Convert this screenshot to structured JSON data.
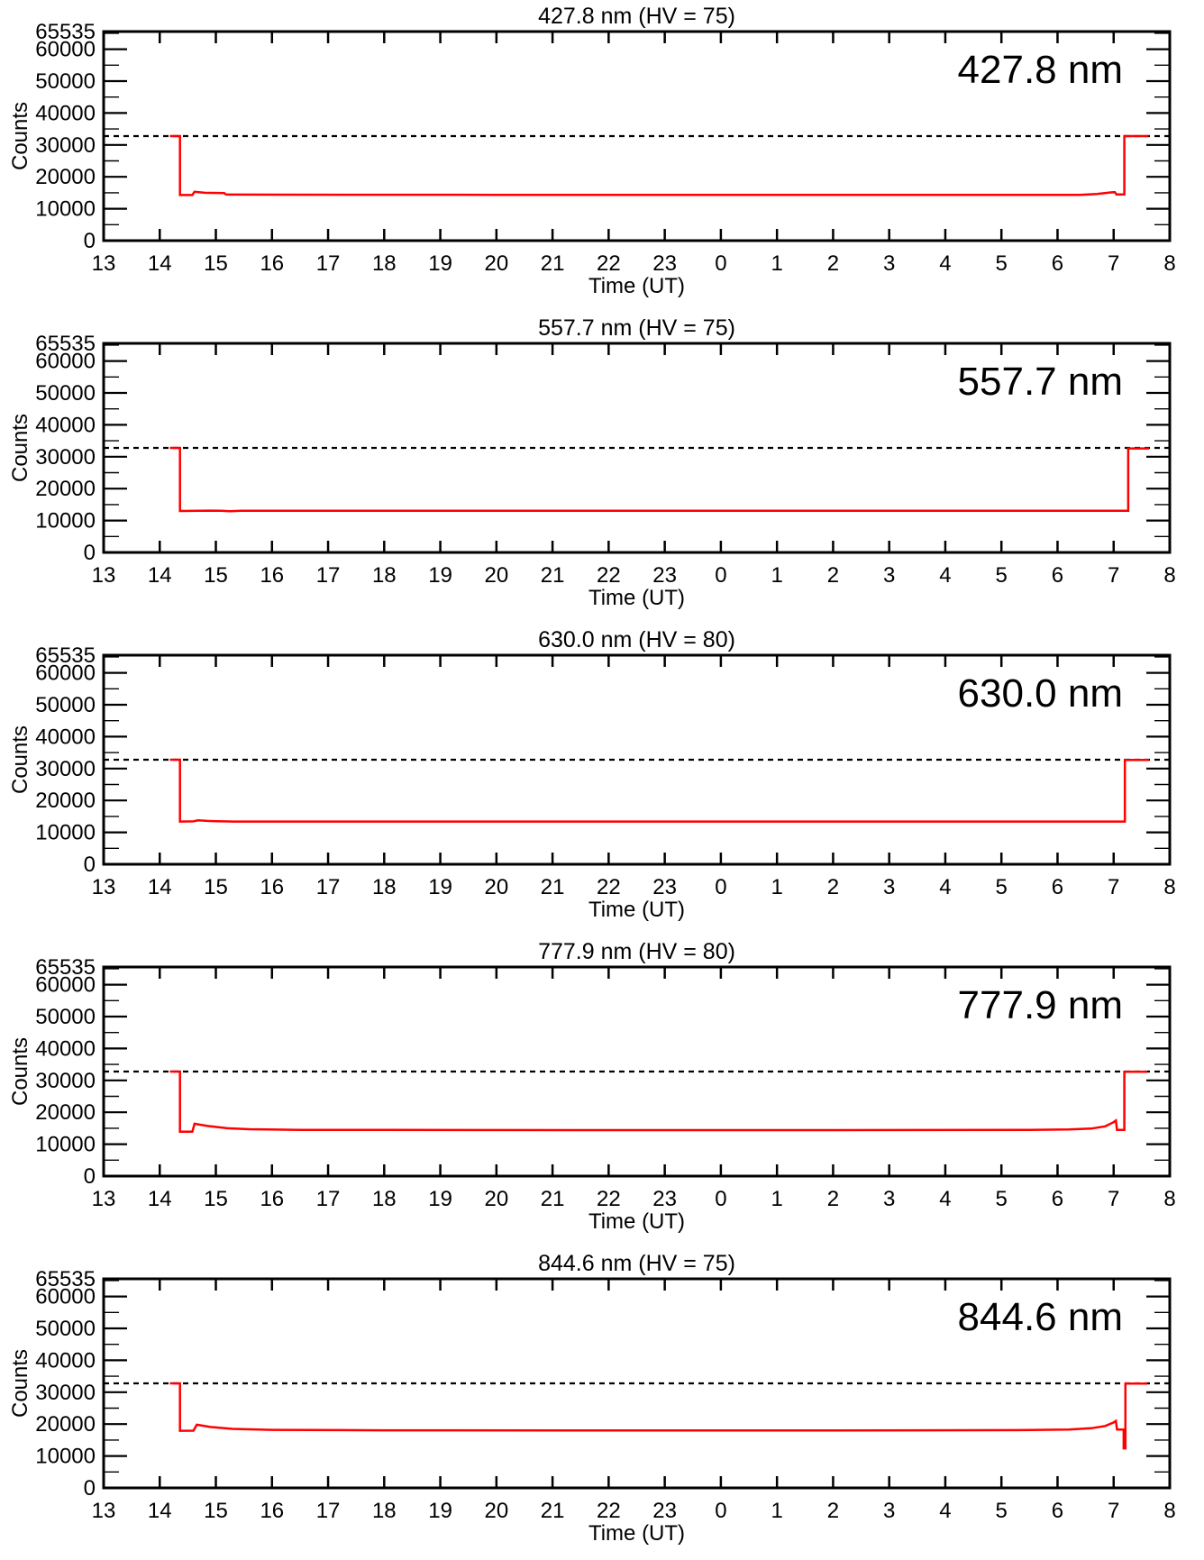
{
  "page": {
    "background": "#ffffff"
  },
  "colors": {
    "axis": "#000000",
    "text": "#000000",
    "series": "#ff0000",
    "threshold": "#000000"
  },
  "axes_common": {
    "ylabel": "Counts",
    "xlabel": "Time (UT)",
    "ylim": [
      0,
      65535
    ],
    "x_range": [
      13,
      32
    ],
    "x_tick_labels": [
      "13",
      "14",
      "15",
      "16",
      "17",
      "18",
      "19",
      "20",
      "21",
      "22",
      "23",
      "0",
      "1",
      "2",
      "3",
      "4",
      "5",
      "6",
      "7",
      "8"
    ],
    "y_tick_values": [
      0,
      10000,
      20000,
      30000,
      40000,
      50000,
      60000,
      65535
    ],
    "y_tick_labels": [
      "0",
      "10000",
      "20000",
      "30000",
      "40000",
      "50000",
      "60000",
      "65535"
    ],
    "y_minor_step": 5000,
    "grid": "off",
    "threshold_level": 32767,
    "threshold_style": "dashed"
  },
  "chart_data": [
    {
      "type": "line",
      "title": "427.8 nm (HV = 75)",
      "annotation": "427.8 nm",
      "xlabel": "Time (UT)",
      "ylabel": "Counts",
      "x_range": [
        13,
        32
      ],
      "ylim": [
        0,
        65535
      ],
      "dashed_level": 32767,
      "series": [
        {
          "name": "counts",
          "color": "#ff0000",
          "points": [
            [
              14.18,
              32767
            ],
            [
              14.36,
              32767
            ],
            [
              14.36,
              14300
            ],
            [
              14.58,
              14300
            ],
            [
              14.62,
              15300
            ],
            [
              14.8,
              15000
            ],
            [
              15.15,
              14900
            ],
            [
              15.18,
              14450
            ],
            [
              16,
              14400
            ],
            [
              20,
              14350
            ],
            [
              24,
              14350
            ],
            [
              28,
              14350
            ],
            [
              30.4,
              14350
            ],
            [
              30.7,
              14600
            ],
            [
              30.95,
              15100
            ],
            [
              31.02,
              15200
            ],
            [
              31.05,
              14500
            ],
            [
              31.19,
              14500
            ],
            [
              31.19,
              32767
            ],
            [
              31.62,
              32767
            ]
          ]
        }
      ]
    },
    {
      "type": "line",
      "title": "557.7 nm (HV = 75)",
      "annotation": "557.7 nm",
      "xlabel": "Time (UT)",
      "ylabel": "Counts",
      "x_range": [
        13,
        32
      ],
      "ylim": [
        0,
        65535
      ],
      "dashed_level": 32767,
      "series": [
        {
          "name": "counts",
          "color": "#ff0000",
          "points": [
            [
              14.18,
              32767
            ],
            [
              14.36,
              32767
            ],
            [
              14.36,
              13000
            ],
            [
              14.9,
              13100
            ],
            [
              15.1,
              13050
            ],
            [
              15.25,
              12900
            ],
            [
              15.45,
              13050
            ],
            [
              20,
              13050
            ],
            [
              25,
              13050
            ],
            [
              31.26,
              13050
            ],
            [
              31.26,
              32600
            ],
            [
              31.63,
              32600
            ]
          ]
        }
      ]
    },
    {
      "type": "line",
      "title": "630.0 nm (HV = 80)",
      "annotation": "630.0 nm",
      "xlabel": "Time (UT)",
      "ylabel": "Counts",
      "x_range": [
        13,
        32
      ],
      "ylim": [
        0,
        65535
      ],
      "dashed_level": 32767,
      "series": [
        {
          "name": "counts",
          "color": "#ff0000",
          "points": [
            [
              14.18,
              32767
            ],
            [
              14.36,
              32767
            ],
            [
              14.36,
              13400
            ],
            [
              14.6,
              13450
            ],
            [
              14.68,
              13750
            ],
            [
              14.85,
              13600
            ],
            [
              15.0,
              13500
            ],
            [
              15.3,
              13400
            ],
            [
              20,
              13400
            ],
            [
              25,
              13400
            ],
            [
              31.2,
              13400
            ],
            [
              31.2,
              32700
            ],
            [
              31.63,
              32700
            ]
          ]
        }
      ]
    },
    {
      "type": "line",
      "title": "777.9 nm (HV = 80)",
      "annotation": "777.9 nm",
      "xlabel": "Time (UT)",
      "ylabel": "Counts",
      "x_range": [
        13,
        32
      ],
      "ylim": [
        0,
        65535
      ],
      "dashed_level": 32767,
      "series": [
        {
          "name": "counts",
          "color": "#ff0000",
          "points": [
            [
              14.18,
              32767
            ],
            [
              14.36,
              32767
            ],
            [
              14.36,
              13900
            ],
            [
              14.58,
              13900
            ],
            [
              14.62,
              16400
            ],
            [
              14.85,
              15700
            ],
            [
              15.2,
              15000
            ],
            [
              15.6,
              14700
            ],
            [
              16.5,
              14500
            ],
            [
              18,
              14450
            ],
            [
              22,
              14400
            ],
            [
              26,
              14400
            ],
            [
              29.5,
              14450
            ],
            [
              30.2,
              14600
            ],
            [
              30.6,
              14900
            ],
            [
              30.85,
              15600
            ],
            [
              31.0,
              16900
            ],
            [
              31.04,
              17400
            ],
            [
              31.06,
              14500
            ],
            [
              31.19,
              14500
            ],
            [
              31.19,
              32700
            ],
            [
              31.6,
              32700
            ]
          ]
        }
      ]
    },
    {
      "type": "line",
      "title": "844.6 nm (HV = 75)",
      "annotation": "844.6 nm",
      "xlabel": "Time (UT)",
      "ylabel": "Counts",
      "x_range": [
        13,
        32
      ],
      "ylim": [
        0,
        65535
      ],
      "dashed_level": 32767,
      "series": [
        {
          "name": "counts",
          "color": "#ff0000",
          "points": [
            [
              14.18,
              32767
            ],
            [
              14.36,
              32767
            ],
            [
              14.36,
              17900
            ],
            [
              14.6,
              17950
            ],
            [
              14.66,
              19800
            ],
            [
              14.9,
              19100
            ],
            [
              15.3,
              18500
            ],
            [
              16,
              18200
            ],
            [
              18,
              18050
            ],
            [
              22,
              18000
            ],
            [
              26,
              18000
            ],
            [
              29.3,
              18100
            ],
            [
              30.2,
              18300
            ],
            [
              30.6,
              18700
            ],
            [
              30.85,
              19400
            ],
            [
              31.0,
              20500
            ],
            [
              31.04,
              21000
            ],
            [
              31.06,
              18300
            ],
            [
              31.18,
              18300
            ],
            [
              31.18,
              12400
            ],
            [
              31.21,
              12400
            ],
            [
              31.21,
              32700
            ],
            [
              31.6,
              32700
            ]
          ]
        }
      ]
    }
  ]
}
